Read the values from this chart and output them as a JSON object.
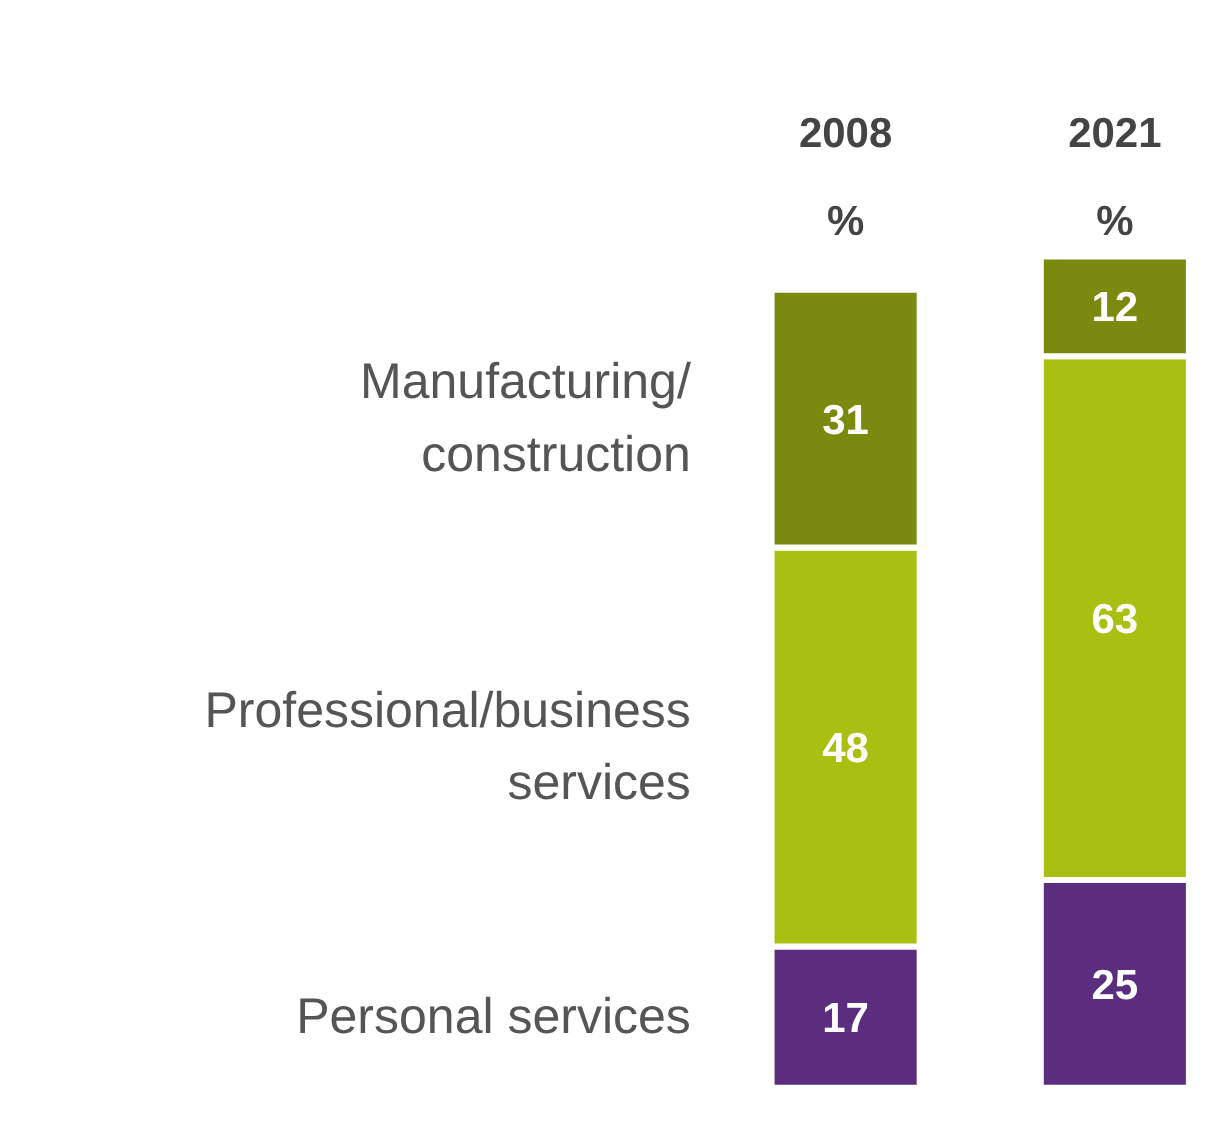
{
  "chart_data": {
    "type": "bar",
    "stacked": true,
    "categories": [
      "2008\n%",
      "2021\n%"
    ],
    "data_labels": true,
    "grid": false,
    "series": [
      {
        "name": "Personal services",
        "color": "#5b2d7f",
        "values": [
          17,
          25
        ]
      },
      {
        "name": "Professional/business services",
        "color": "#a9bf12",
        "values": [
          48,
          63
        ]
      },
      {
        "name": "Manufacturing/ construction",
        "color": "#7a8a0e",
        "values": [
          31,
          12
        ]
      }
    ]
  }
}
